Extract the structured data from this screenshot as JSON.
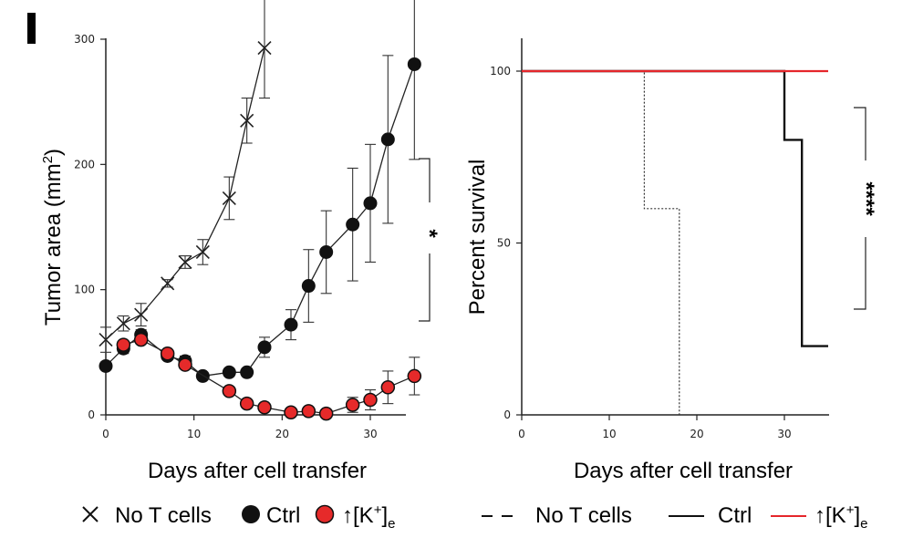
{
  "panel_label": "I",
  "colors": {
    "red": "#e5262b",
    "black": "#111111",
    "red_fill": "#e62a2a"
  },
  "chart_data": [
    {
      "type": "line",
      "title": "",
      "xlabel": "Days after cell transfer",
      "ylabel": "Tumor area (mm",
      "ylabel_sup": "2",
      "ylabel_end": ")",
      "xlim": [
        0,
        35
      ],
      "ylim": [
        0,
        300
      ],
      "xticks": [
        "0",
        "10",
        "20",
        "30"
      ],
      "yticks": [
        "0",
        "100",
        "200",
        "300"
      ],
      "grid": false,
      "legend_position": "bottom",
      "series": [
        {
          "name": "No T cells",
          "marker": "x",
          "color": "#333333",
          "x": [
            0,
            2,
            4,
            7,
            9,
            11,
            14,
            16,
            18
          ],
          "y": [
            60,
            73,
            80,
            105,
            122,
            130,
            173,
            235,
            293
          ],
          "err": [
            10,
            6,
            9,
            3,
            5,
            10,
            17,
            18,
            40
          ]
        },
        {
          "name": "Ctrl",
          "marker": "filled-circle",
          "color": "#111111",
          "x": [
            0,
            2,
            4,
            7,
            9,
            11,
            14,
            16,
            18,
            21,
            23,
            25,
            28,
            30,
            32,
            35
          ],
          "y": [
            39,
            53,
            64,
            47,
            43,
            31,
            34,
            34,
            54,
            72,
            103,
            130,
            152,
            169,
            220,
            280
          ],
          "err": [
            3,
            4,
            4,
            3,
            4,
            3,
            3,
            3,
            8,
            12,
            29,
            33,
            45,
            47,
            67,
            76
          ]
        },
        {
          "name": "↑[K+]e",
          "marker": "red-circle",
          "color": "#e5262b",
          "x": [
            2,
            4,
            7,
            9,
            14,
            16,
            18,
            21,
            23,
            25,
            28,
            30,
            32,
            35
          ],
          "y": [
            56,
            60,
            49,
            40,
            19,
            9,
            6,
            2,
            3,
            1,
            8,
            12,
            22,
            31
          ],
          "err": [
            3,
            3,
            3,
            3,
            3,
            3,
            2,
            1,
            1,
            1,
            6,
            8,
            13,
            15
          ]
        }
      ],
      "significance": "*",
      "legend": [
        {
          "symbol": "×",
          "label": "No T cells"
        },
        {
          "symbol": "●",
          "label": "Ctrl"
        },
        {
          "symbol": "●",
          "label_main": "↑[K",
          "label_sup": "+",
          "label_mid": "]",
          "label_sub": "e"
        }
      ]
    },
    {
      "type": "line",
      "subtype": "survival-step",
      "title": "",
      "xlabel": "Days after cell transfer",
      "ylabel": "Percent survival",
      "xlim": [
        0,
        35
      ],
      "ylim": [
        0,
        110
      ],
      "xticks": [
        "0",
        "10",
        "20",
        "30"
      ],
      "yticks": [
        "0",
        "50",
        "100"
      ],
      "grid": false,
      "legend_position": "bottom",
      "series": [
        {
          "name": "No T cells",
          "style": "dotted",
          "color": "#333333",
          "steps": [
            [
              0,
              100
            ],
            [
              14,
              100
            ],
            [
              14,
              60
            ],
            [
              18,
              60
            ],
            [
              18,
              0
            ]
          ]
        },
        {
          "name": "Ctrl",
          "style": "solid",
          "color": "#111111",
          "steps": [
            [
              0,
              100
            ],
            [
              30,
              100
            ],
            [
              30,
              80
            ],
            [
              32,
              80
            ],
            [
              32,
              20
            ],
            [
              35,
              20
            ]
          ]
        },
        {
          "name": "↑[K+]e",
          "style": "solid",
          "color": "#e5262b",
          "steps": [
            [
              0,
              100
            ],
            [
              35,
              100
            ]
          ]
        }
      ],
      "significance": "****",
      "legend": [
        {
          "symbol": "– –",
          "label": "No T cells"
        },
        {
          "symbol": "—",
          "label": "Ctrl"
        },
        {
          "symbol": "—",
          "label_main": "↑[K",
          "label_sup": "+",
          "label_mid": "]",
          "label_sub": "e"
        }
      ]
    }
  ]
}
